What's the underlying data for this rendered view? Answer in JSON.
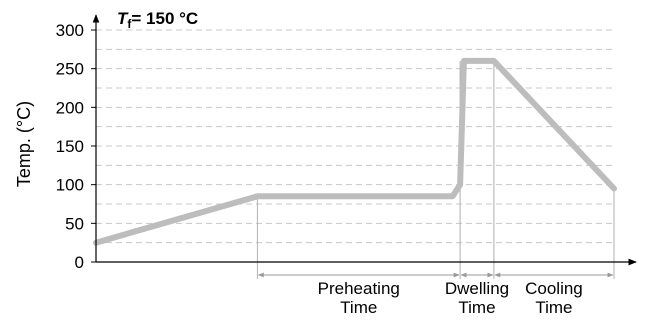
{
  "chart_data": {
    "type": "line",
    "title": "= 150 °C",
    "title_symbol": "T",
    "title_subscript": "f",
    "ylabel": "Temp. (°C)",
    "xlabel": "",
    "ylim": [
      0,
      300
    ],
    "yticks": [
      0,
      50,
      100,
      150,
      200,
      250,
      300
    ],
    "grid": true,
    "x_ticks_shown": false,
    "line_color": "#bdbdbd",
    "phases": [
      {
        "label_lines": [
          "Preheating",
          "Time"
        ]
      },
      {
        "label_lines": [
          "Dwelling",
          "Time"
        ]
      },
      {
        "label_lines": [
          "Cooling",
          "Time"
        ]
      }
    ],
    "series": [
      {
        "x": [
          0,
          43,
          95,
          97,
          98,
          106,
          138
        ],
        "y": [
          25,
          85,
          85,
          100,
          260,
          260,
          95
        ]
      }
    ]
  }
}
